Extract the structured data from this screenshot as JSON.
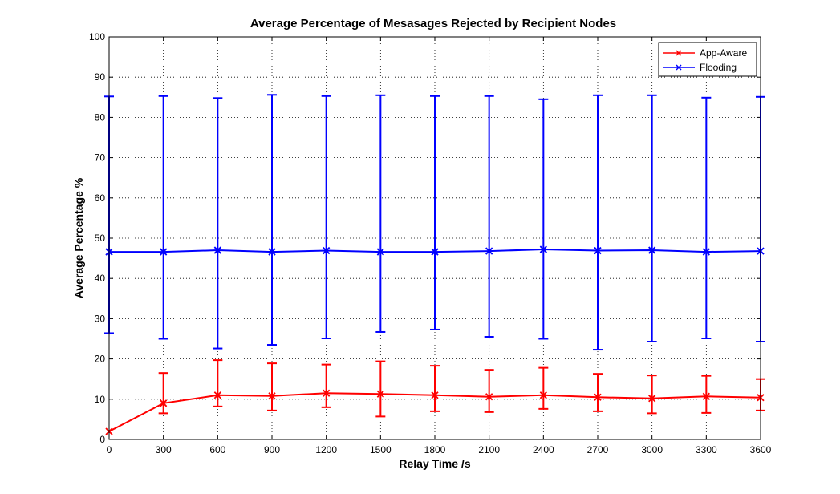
{
  "chart_data": {
    "type": "line",
    "title": "Average Percentage of Mesasages Rejected by Recipient Nodes",
    "xlabel": "Relay Time /s",
    "ylabel": "Average Percentage %",
    "x": [
      0,
      300,
      600,
      900,
      1200,
      1500,
      1800,
      2100,
      2400,
      2700,
      3000,
      3300,
      3600
    ],
    "x_ticks": [
      0,
      300,
      600,
      900,
      1200,
      1500,
      1800,
      2100,
      2400,
      2700,
      3000,
      3300,
      3600
    ],
    "y_ticks": [
      0,
      10,
      20,
      30,
      40,
      50,
      60,
      70,
      80,
      90,
      100
    ],
    "xlim": [
      0,
      3600
    ],
    "ylim": [
      0,
      100
    ],
    "grid": true,
    "legend_position": "top-right",
    "series": [
      {
        "name": "App-Aware",
        "color": "#ff0000",
        "marker": "x",
        "values": [
          2.0,
          9.0,
          11.0,
          10.8,
          11.5,
          11.3,
          11.0,
          10.6,
          11.0,
          10.5,
          10.2,
          10.7,
          10.4
        ],
        "err_low": [
          2.0,
          6.5,
          8.2,
          7.2,
          8.0,
          5.7,
          7.0,
          6.8,
          7.6,
          7.0,
          6.5,
          6.6,
          7.2
        ],
        "err_high": [
          2.0,
          16.5,
          19.7,
          18.9,
          18.6,
          19.4,
          18.3,
          17.3,
          17.8,
          16.3,
          15.9,
          15.8,
          15.0
        ]
      },
      {
        "name": "Flooding",
        "color": "#0000ff",
        "marker": "x",
        "values": [
          46.6,
          46.6,
          47.0,
          46.6,
          46.9,
          46.6,
          46.6,
          46.8,
          47.2,
          46.9,
          47.0,
          46.6,
          46.8
        ],
        "err_low": [
          26.4,
          25.0,
          22.6,
          23.5,
          25.1,
          26.7,
          27.3,
          25.5,
          25.0,
          22.3,
          24.3,
          25.1,
          24.3
        ],
        "err_high": [
          85.2,
          85.3,
          84.8,
          85.6,
          85.3,
          85.5,
          85.3,
          85.3,
          84.5,
          85.5,
          85.5,
          84.9,
          85.1
        ]
      }
    ]
  }
}
